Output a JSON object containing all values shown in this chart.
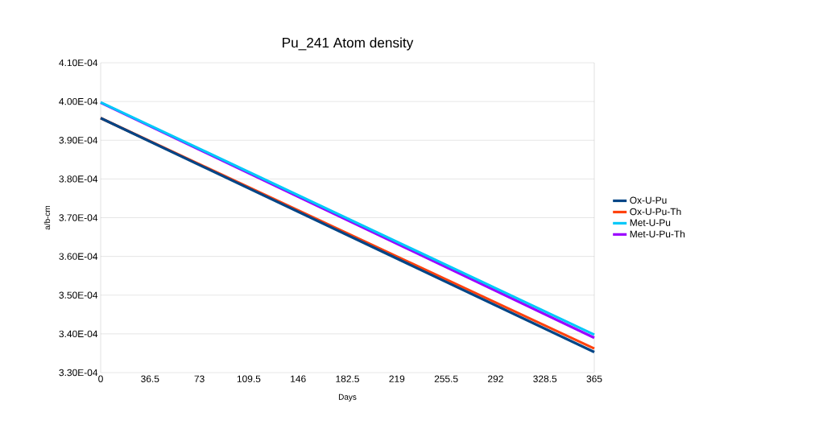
{
  "chart_data": {
    "type": "line",
    "title": "Pu_241 Atom density",
    "xlabel": "Days",
    "ylabel": "a/b-cm",
    "x": [
      0,
      365
    ],
    "xlim": [
      0,
      365
    ],
    "xticks": [
      0,
      36.5,
      73,
      109.5,
      146,
      182.5,
      219,
      255.5,
      292,
      328.5,
      365
    ],
    "ylim": [
      0.00033,
      0.00041
    ],
    "yticks": [
      {
        "value": 0.00033,
        "label": "3.30E-04"
      },
      {
        "value": 0.00034,
        "label": "3.40E-04"
      },
      {
        "value": 0.00035,
        "label": "3.50E-04"
      },
      {
        "value": 0.00036,
        "label": "3.60E-04"
      },
      {
        "value": 0.00037,
        "label": "3.70E-04"
      },
      {
        "value": 0.00038,
        "label": "3.80E-04"
      },
      {
        "value": 0.00039,
        "label": "3.90E-04"
      },
      {
        "value": 0.0004,
        "label": "4.00E-04"
      },
      {
        "value": 0.00041,
        "label": "4.10E-04"
      }
    ],
    "grid": "y",
    "legend": "right",
    "marker": "none",
    "line_style": "solid",
    "series": [
      {
        "name": "Ox-U-Pu",
        "color": "#004586",
        "values": [
          0.0003957,
          0.0003353
        ]
      },
      {
        "name": "Ox-U-Pu-Th",
        "color": "#ff420e",
        "values": [
          0.0003957,
          0.0003362
        ]
      },
      {
        "name": "Met-U-Pu",
        "color": "#00c8f8",
        "values": [
          0.0003998,
          0.0003398
        ]
      },
      {
        "name": "Met-U-Pu-Th",
        "color": "#9b00ff",
        "values": [
          0.0003997,
          0.000339
        ]
      }
    ]
  }
}
